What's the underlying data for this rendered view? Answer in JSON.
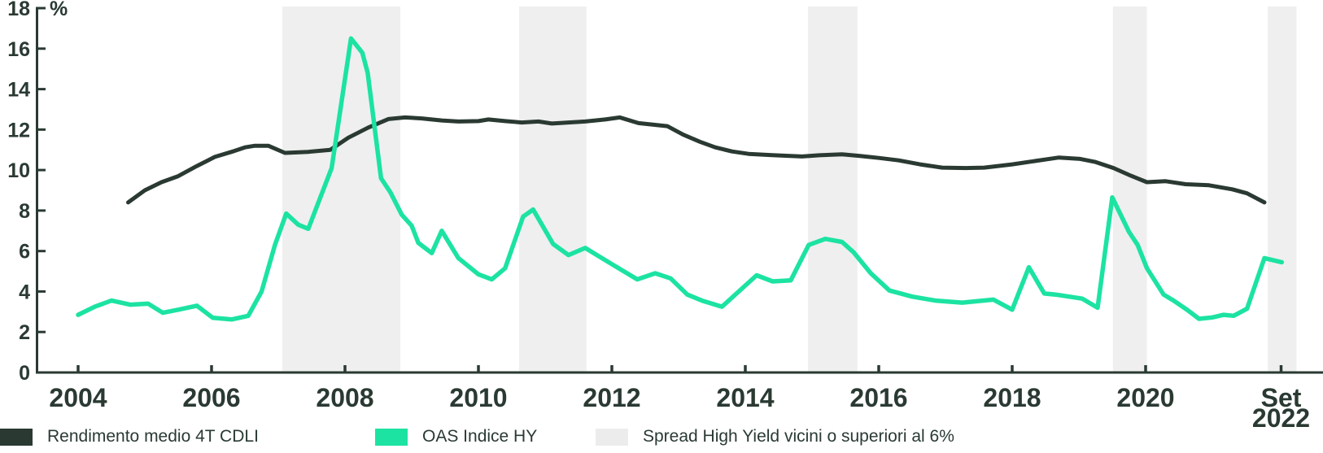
{
  "chart_data": {
    "type": "line",
    "unit_label": "%",
    "axis_color": "#2a3a32",
    "y_axis": {
      "range": [
        0,
        18
      ],
      "ticks": [
        0,
        2,
        4,
        6,
        8,
        10,
        12,
        14,
        16,
        18
      ]
    },
    "x_axis": {
      "range": [
        2004,
        2022.75
      ],
      "ticks": [
        {
          "pos": 2004,
          "lines": [
            "2004"
          ]
        },
        {
          "pos": 2006,
          "lines": [
            "2006"
          ]
        },
        {
          "pos": 2008,
          "lines": [
            "2008"
          ]
        },
        {
          "pos": 2010,
          "lines": [
            "2010"
          ]
        },
        {
          "pos": 2012,
          "lines": [
            "2012"
          ]
        },
        {
          "pos": 2014,
          "lines": [
            "2014"
          ]
        },
        {
          "pos": 2016,
          "lines": [
            "2016"
          ]
        },
        {
          "pos": 2018,
          "lines": [
            "2018"
          ]
        },
        {
          "pos": 2020,
          "lines": [
            "2020"
          ]
        },
        {
          "pos": 2022.03,
          "lines": [
            "Set",
            "2022"
          ]
        }
      ]
    },
    "shaded_periods": {
      "label": "Spread High Yield vicini o superiori al 6%",
      "color": "#efefef",
      "ranges": [
        [
          2007.06,
          2008.83
        ],
        [
          2010.61,
          2011.62
        ],
        [
          2014.94,
          2015.68
        ],
        [
          2019.51,
          2020.02
        ],
        [
          2021.83,
          2022.26
        ]
      ]
    },
    "series": [
      {
        "id": "rendimento-medio-4t-cdli",
        "name": "Rendimento medio 4T CDLI",
        "color": "#2a3a32",
        "width": 5,
        "points": [
          [
            2004.75,
            8.4
          ],
          [
            2005.0,
            9.0
          ],
          [
            2005.25,
            9.4
          ],
          [
            2005.5,
            9.7
          ],
          [
            2005.78,
            10.2
          ],
          [
            2006.05,
            10.65
          ],
          [
            2006.3,
            10.9
          ],
          [
            2006.5,
            11.12
          ],
          [
            2006.65,
            11.2
          ],
          [
            2006.85,
            11.2
          ],
          [
            2007.1,
            10.85
          ],
          [
            2007.45,
            10.9
          ],
          [
            2007.78,
            11.0
          ],
          [
            2008.05,
            11.6
          ],
          [
            2008.35,
            12.1
          ],
          [
            2008.65,
            12.52
          ],
          [
            2008.9,
            12.6
          ],
          [
            2009.15,
            12.55
          ],
          [
            2009.45,
            12.45
          ],
          [
            2009.7,
            12.4
          ],
          [
            2010.0,
            12.42
          ],
          [
            2010.15,
            12.5
          ],
          [
            2010.4,
            12.42
          ],
          [
            2010.65,
            12.35
          ],
          [
            2010.9,
            12.4
          ],
          [
            2011.1,
            12.3
          ],
          [
            2011.35,
            12.35
          ],
          [
            2011.6,
            12.4
          ],
          [
            2011.9,
            12.5
          ],
          [
            2012.12,
            12.6
          ],
          [
            2012.4,
            12.32
          ],
          [
            2012.83,
            12.17
          ],
          [
            2013.07,
            11.75
          ],
          [
            2013.32,
            11.4
          ],
          [
            2013.55,
            11.12
          ],
          [
            2013.8,
            10.92
          ],
          [
            2014.05,
            10.8
          ],
          [
            2014.4,
            10.74
          ],
          [
            2014.85,
            10.67
          ],
          [
            2015.11,
            10.73
          ],
          [
            2015.45,
            10.78
          ],
          [
            2015.72,
            10.7
          ],
          [
            2016.0,
            10.6
          ],
          [
            2016.3,
            10.48
          ],
          [
            2016.62,
            10.28
          ],
          [
            2016.95,
            10.12
          ],
          [
            2017.3,
            10.1
          ],
          [
            2017.58,
            10.12
          ],
          [
            2018.0,
            10.28
          ],
          [
            2018.35,
            10.45
          ],
          [
            2018.7,
            10.62
          ],
          [
            2019.02,
            10.55
          ],
          [
            2019.25,
            10.4
          ],
          [
            2019.52,
            10.1
          ],
          [
            2019.78,
            9.72
          ],
          [
            2020.02,
            9.4
          ],
          [
            2020.3,
            9.45
          ],
          [
            2020.6,
            9.3
          ],
          [
            2020.95,
            9.25
          ],
          [
            2021.3,
            9.05
          ],
          [
            2021.52,
            8.85
          ],
          [
            2021.78,
            8.4
          ]
        ]
      },
      {
        "id": "oas-indice-hy",
        "name": "OAS Indice HY",
        "color": "#1ce3a2",
        "width": 5.5,
        "points": [
          [
            2004.0,
            2.85
          ],
          [
            2004.25,
            3.25
          ],
          [
            2004.5,
            3.55
          ],
          [
            2004.78,
            3.35
          ],
          [
            2005.05,
            3.4
          ],
          [
            2005.27,
            2.95
          ],
          [
            2005.5,
            3.1
          ],
          [
            2005.78,
            3.3
          ],
          [
            2006.02,
            2.7
          ],
          [
            2006.3,
            2.62
          ],
          [
            2006.55,
            2.8
          ],
          [
            2006.75,
            4.0
          ],
          [
            2006.95,
            6.3
          ],
          [
            2007.12,
            7.85
          ],
          [
            2007.3,
            7.3
          ],
          [
            2007.45,
            7.1
          ],
          [
            2007.8,
            10.1
          ],
          [
            2008.09,
            16.5
          ],
          [
            2008.26,
            15.8
          ],
          [
            2008.34,
            14.8
          ],
          [
            2008.54,
            9.6
          ],
          [
            2008.68,
            8.9
          ],
          [
            2008.85,
            7.8
          ],
          [
            2009.0,
            7.25
          ],
          [
            2009.1,
            6.4
          ],
          [
            2009.3,
            5.9
          ],
          [
            2009.45,
            7.0
          ],
          [
            2009.7,
            5.65
          ],
          [
            2010.0,
            4.85
          ],
          [
            2010.2,
            4.6
          ],
          [
            2010.4,
            5.15
          ],
          [
            2010.67,
            7.7
          ],
          [
            2010.82,
            8.05
          ],
          [
            2011.12,
            6.35
          ],
          [
            2011.35,
            5.8
          ],
          [
            2011.6,
            6.15
          ],
          [
            2012.0,
            5.35
          ],
          [
            2012.38,
            4.6
          ],
          [
            2012.65,
            4.9
          ],
          [
            2012.88,
            4.65
          ],
          [
            2013.13,
            3.85
          ],
          [
            2013.35,
            3.55
          ],
          [
            2013.65,
            3.25
          ],
          [
            2014.17,
            4.8
          ],
          [
            2014.41,
            4.5
          ],
          [
            2014.68,
            4.55
          ],
          [
            2014.95,
            6.3
          ],
          [
            2015.2,
            6.6
          ],
          [
            2015.45,
            6.45
          ],
          [
            2015.62,
            5.95
          ],
          [
            2015.88,
            4.9
          ],
          [
            2016.16,
            4.05
          ],
          [
            2016.5,
            3.75
          ],
          [
            2016.85,
            3.55
          ],
          [
            2017.25,
            3.45
          ],
          [
            2017.72,
            3.6
          ],
          [
            2018.0,
            3.1
          ],
          [
            2018.25,
            5.2
          ],
          [
            2018.48,
            3.9
          ],
          [
            2018.65,
            3.85
          ],
          [
            2019.05,
            3.65
          ],
          [
            2019.28,
            3.2
          ],
          [
            2019.5,
            8.65
          ],
          [
            2019.75,
            6.95
          ],
          [
            2019.88,
            6.3
          ],
          [
            2020.02,
            5.15
          ],
          [
            2020.27,
            3.85
          ],
          [
            2020.42,
            3.55
          ],
          [
            2020.62,
            3.1
          ],
          [
            2020.8,
            2.65
          ],
          [
            2021.0,
            2.72
          ],
          [
            2021.17,
            2.85
          ],
          [
            2021.32,
            2.8
          ],
          [
            2021.52,
            3.15
          ],
          [
            2021.78,
            5.65
          ],
          [
            2022.04,
            5.45
          ]
        ]
      }
    ]
  },
  "legend": {
    "items": [
      {
        "label": "Rendimento medio 4T CDLI",
        "color": "#2a3a32"
      },
      {
        "label": "OAS Indice HY",
        "color": "#1ce3a2"
      },
      {
        "label": "Spread High Yield vicini o superiori al 6%",
        "color": "#ececec"
      }
    ]
  }
}
